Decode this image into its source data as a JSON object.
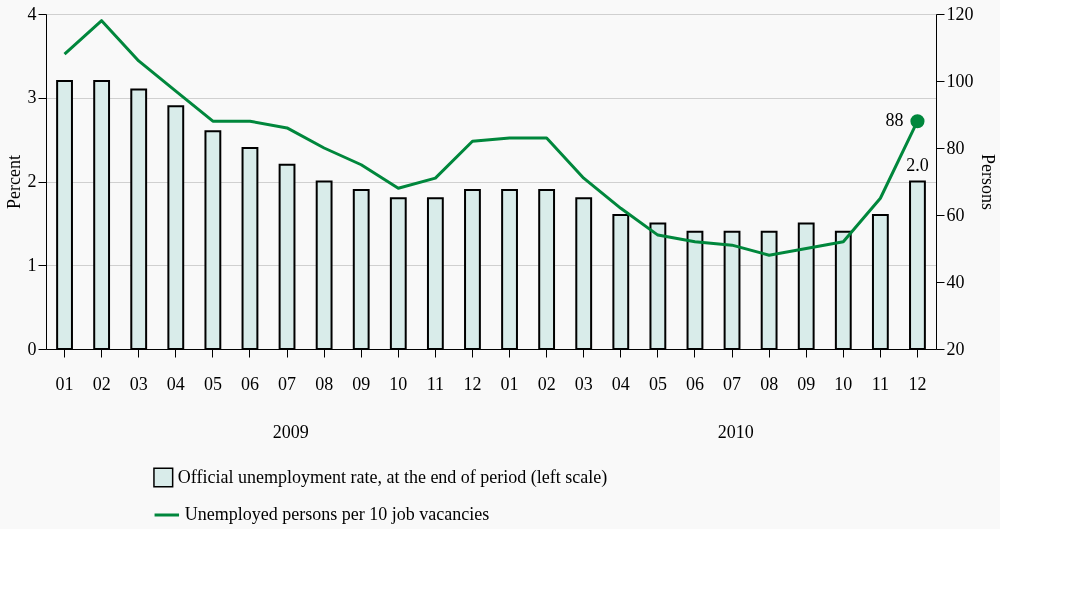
{
  "chart_data": {
    "type": "bar",
    "categories": [
      "01",
      "02",
      "03",
      "04",
      "05",
      "06",
      "07",
      "08",
      "09",
      "10",
      "11",
      "12",
      "01",
      "02",
      "03",
      "04",
      "05",
      "06",
      "07",
      "08",
      "09",
      "10",
      "11",
      "12"
    ],
    "ylabel": "Percent",
    "y2label": "Persons",
    "ylim": [
      0,
      4
    ],
    "yticks": [
      0,
      1,
      2,
      3,
      4
    ],
    "y2lim": [
      20,
      120
    ],
    "y2ticks": [
      20,
      40,
      60,
      80,
      100,
      120
    ],
    "annotations": [
      "2009",
      "2010"
    ],
    "grid": "y",
    "legend": "bottom",
    "series": [
      {
        "name": "Official unemployment rate, at the end of period (left scale)",
        "color": "#d9ecea",
        "values": [
          3.2,
          3.2,
          3.1,
          2.9,
          2.6,
          2.4,
          2.2,
          2.0,
          1.9,
          1.8,
          1.8,
          1.9,
          1.9,
          1.9,
          1.8,
          1.6,
          1.5,
          1.4,
          1.4,
          1.4,
          1.5,
          1.4,
          1.6,
          2.0
        ],
        "value_labels": [
          null,
          null,
          null,
          null,
          null,
          null,
          null,
          null,
          null,
          null,
          null,
          null,
          null,
          null,
          null,
          null,
          null,
          null,
          null,
          null,
          null,
          null,
          null,
          "2.0"
        ]
      },
      {
        "name": "Unemployed persons per 10 job vacancies",
        "type": "line",
        "axis": "y2",
        "color": "#00873c",
        "values": [
          108,
          118,
          106,
          97,
          88,
          88,
          86,
          80,
          75,
          68,
          71,
          82,
          83,
          83,
          71,
          62,
          54,
          52,
          51,
          48,
          50,
          52,
          65,
          88
        ],
        "value_labels": [
          null,
          null,
          null,
          null,
          null,
          null,
          null,
          null,
          null,
          null,
          null,
          null,
          null,
          null,
          null,
          null,
          null,
          null,
          null,
          null,
          null,
          null,
          null,
          "88"
        ]
      }
    ]
  }
}
